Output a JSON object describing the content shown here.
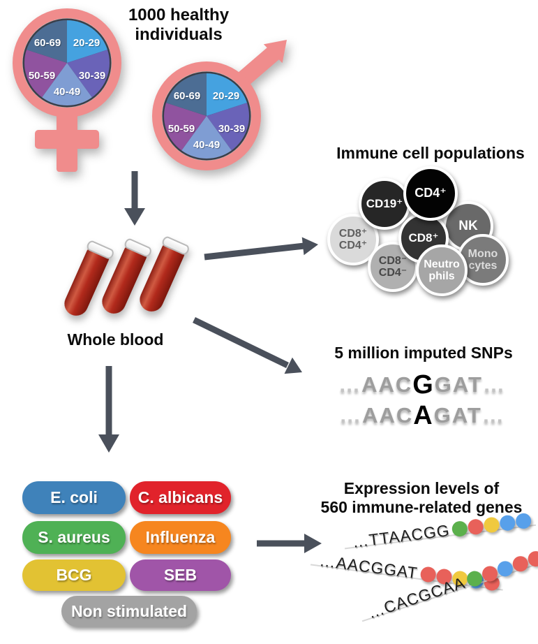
{
  "cohort": {
    "heading": [
      "1000 healthy",
      "individuals"
    ],
    "age_groups": [
      {
        "label": "20-29",
        "color": "#45a2e0"
      },
      {
        "label": "30-39",
        "color": "#6a63b8"
      },
      {
        "label": "40-49",
        "color": "#7f9dd3"
      },
      {
        "label": "50-59",
        "color": "#90539f"
      },
      {
        "label": "60-69",
        "color": "#4c6d94"
      }
    ]
  },
  "whole_blood": {
    "label": "Whole blood"
  },
  "immune_cells": {
    "title": "Immune cell populations",
    "cells": [
      {
        "lines": [
          "CD19⁺"
        ],
        "color": "#262626",
        "text_color": "#ffffff"
      },
      {
        "lines": [
          "CD4⁺"
        ],
        "color": "#030303",
        "text_color": "#ffffff"
      },
      {
        "lines": [
          "NK"
        ],
        "color": "#696969",
        "text_color": "#ffffff"
      },
      {
        "lines": [
          "CD8⁺"
        ],
        "color": "#333333",
        "text_color": "#ffffff"
      },
      {
        "lines": [
          "CD8⁺",
          "CD4⁺"
        ],
        "color": "#dadada",
        "text_color": "#5f5f5f"
      },
      {
        "lines": [
          "CD8⁻",
          "CD4⁻"
        ],
        "color": "#b0b0b0",
        "text_color": "#474747"
      },
      {
        "lines": [
          "Neutro",
          "phils"
        ],
        "color": "#a6a6a6",
        "text_color": "#ffffff"
      },
      {
        "lines": [
          "Mono",
          "cytes"
        ],
        "color": "#7b7b7b",
        "text_color": "#dcdcdc"
      }
    ]
  },
  "snps": {
    "title": "5 million imputed SNPs",
    "sequences": [
      {
        "prefix_dots": "…",
        "pre": "AAC",
        "snp": "G",
        "post": "GAT",
        "suffix_dots": "…"
      },
      {
        "prefix_dots": "…",
        "pre": "AAC",
        "snp": "A",
        "post": "GAT",
        "suffix_dots": "…"
      }
    ]
  },
  "stimuli": {
    "items": [
      {
        "label": "E. coli",
        "color": "#3f82ba"
      },
      {
        "label": "C. albicans",
        "color": "#e1232b"
      },
      {
        "label": "S. aureus",
        "color": "#4fb155"
      },
      {
        "label": "Influenza",
        "color": "#f6861f"
      },
      {
        "label": "BCG",
        "color": "#e2c233"
      },
      {
        "label": "SEB",
        "color": "#a055a8"
      },
      {
        "label": "Non stimulated",
        "color": "#a3a3a3"
      }
    ]
  },
  "expression": {
    "title": [
      "Expression levels of",
      "560 immune-related genes"
    ],
    "strands": [
      {
        "sequence": "…TTAACGG",
        "dots": [
          "green",
          "red",
          "yellow",
          "blue",
          "blue"
        ]
      },
      {
        "sequence": "…AACGGAT",
        "dots": [
          "red",
          "red",
          "yellow",
          "blue",
          "red"
        ]
      },
      {
        "sequence": "…CACGCAA",
        "dots": [
          "green",
          "red",
          "blue",
          "red",
          "red"
        ]
      }
    ],
    "dot_colors": {
      "green": "#5bb04c",
      "red": "#e8615a",
      "yellow": "#f0c93f",
      "blue": "#58a0ea"
    }
  },
  "colors": {
    "symbol_pink": "#f08c8c",
    "pie_border": "#3a3e48",
    "arrow": "#4a505b",
    "blood_red": "#b22a1c"
  }
}
